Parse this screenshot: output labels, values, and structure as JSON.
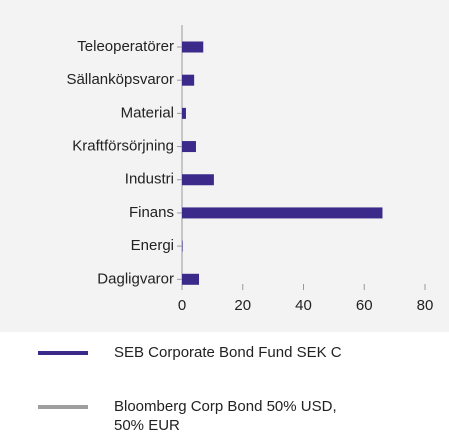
{
  "chart_data": {
    "type": "bar",
    "orientation": "horizontal",
    "categories": [
      "Teleoperatörer",
      "Sällanköpsvaror",
      "Material",
      "Kraftförsörjning",
      "Industri",
      "Finans",
      "Energi",
      "Dagligvaror"
    ],
    "series": [
      {
        "name": "SEB Corporate Bond Fund SEK C",
        "color": "#3b2a8a",
        "values": [
          7,
          4,
          1.3,
          4.6,
          10.5,
          66,
          0.2,
          5.6
        ]
      },
      {
        "name": "Bloomberg Corp Bond 50% USD, 50% EUR",
        "color": "#9e9e9e",
        "values": [
          null,
          null,
          null,
          null,
          null,
          null,
          null,
          null
        ]
      }
    ],
    "xlim": [
      0,
      80
    ],
    "xticks": [
      0,
      20,
      40,
      60,
      80
    ],
    "grid": false
  }
}
